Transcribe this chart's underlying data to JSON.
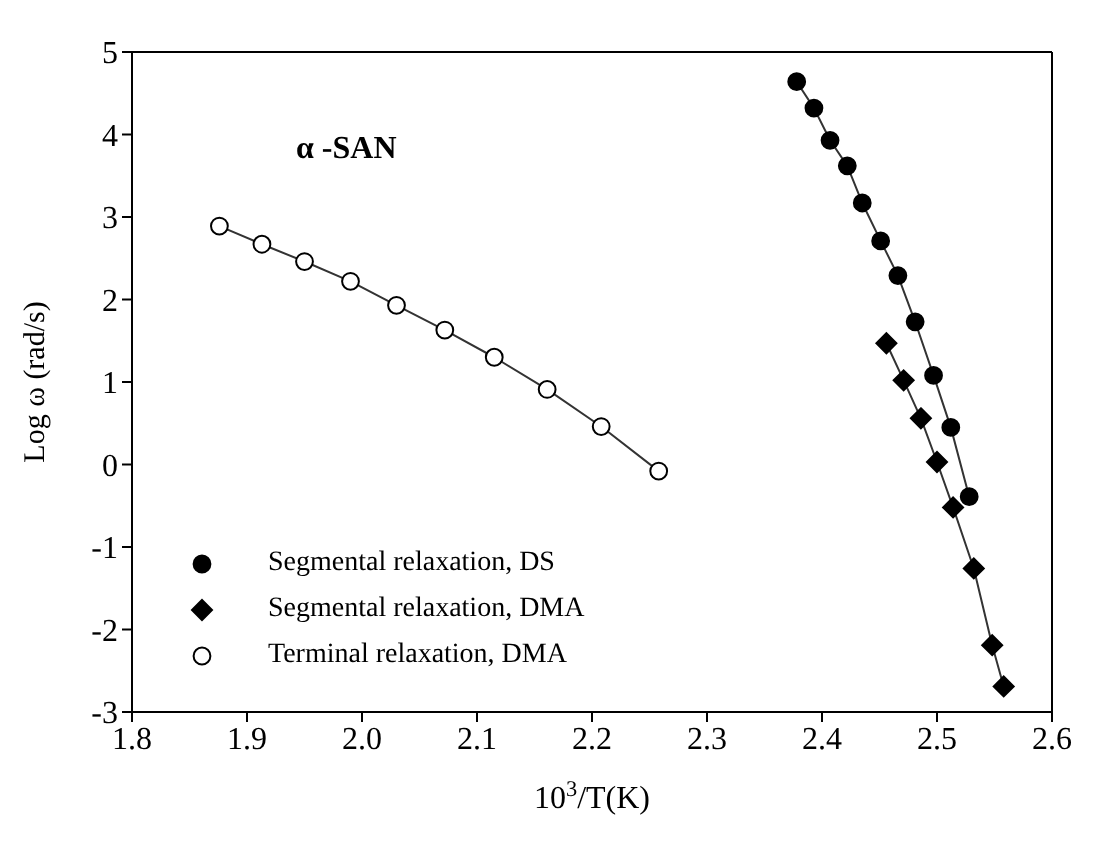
{
  "chart_data": {
    "type": "line",
    "xlabel": "10$^{3}$/T(K)",
    "ylabel": "Log ω (rad/s)",
    "annotations": [
      "α -SAN"
    ],
    "xlim": [
      1.8,
      2.6
    ],
    "xticks": [
      {
        "value": 1.8,
        "label": "1.8"
      },
      {
        "value": 1.9,
        "label": "1.9"
      },
      {
        "value": 2.0,
        "label": "2.0"
      },
      {
        "value": 2.1,
        "label": "2.1"
      },
      {
        "value": 2.2,
        "label": "2.2"
      },
      {
        "value": 2.3,
        "label": "2.3"
      },
      {
        "value": 2.4,
        "label": "2.4"
      },
      {
        "value": 2.5,
        "label": "2.5"
      },
      {
        "value": 2.6,
        "label": "2.6"
      }
    ],
    "ylim": [
      -3,
      5
    ],
    "yticks": [
      -3,
      -2,
      -1,
      0,
      1,
      2,
      3,
      4,
      5
    ],
    "legend": "bottom left",
    "line_style": "solid",
    "series": [
      {
        "name": "Segmental relaxation, DS",
        "color": "#000000",
        "marker": "circle",
        "x": [
          2.378,
          2.393,
          2.407,
          2.422,
          2.435,
          2.451,
          2.466,
          2.481,
          2.497,
          2.512,
          2.528
        ],
        "values": [
          4.64,
          4.32,
          3.93,
          3.62,
          3.17,
          2.71,
          2.29,
          1.73,
          1.08,
          0.45,
          -0.39
        ]
      },
      {
        "name": "Segmental relaxation, DMA",
        "color": "#000000",
        "marker": "diamond",
        "x": [
          2.456,
          2.471,
          2.486,
          2.5,
          2.514,
          2.532,
          2.548,
          2.558
        ],
        "values": [
          1.47,
          1.02,
          0.56,
          0.03,
          -0.52,
          -1.26,
          -2.19,
          -2.69
        ]
      },
      {
        "name": "Terminal relaxation, DMA",
        "color": "#000000",
        "marker": "circle",
        "x": [
          1.876,
          1.913,
          1.95,
          1.99,
          2.03,
          2.072,
          2.115,
          2.161,
          2.208,
          2.258
        ],
        "values": [
          2.89,
          2.67,
          2.46,
          2.22,
          1.93,
          1.63,
          1.3,
          0.91,
          0.46,
          -0.08
        ]
      }
    ]
  }
}
